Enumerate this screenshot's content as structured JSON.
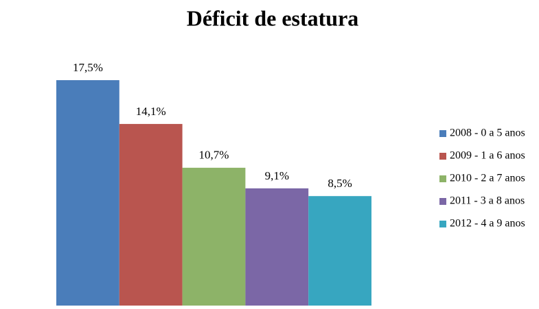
{
  "chart_data": {
    "type": "bar",
    "title": "Déficit de estatura",
    "categories": [
      null
    ],
    "series": [
      {
        "name": "2008 - 0 a 5 anos",
        "color": "#4a7dba",
        "values": [
          17.5
        ],
        "value_labels": [
          "17,5%"
        ]
      },
      {
        "name": "2009 - 1 a 6 anos",
        "color": "#b9554f",
        "values": [
          14.1
        ],
        "value_labels": [
          "14,1%"
        ]
      },
      {
        "name": "2010 - 2 a 7 anos",
        "color": "#8db368",
        "values": [
          10.7
        ],
        "value_labels": [
          "10,7%"
        ]
      },
      {
        "name": "2011 - 3 a 8 anos",
        "color": "#7b67a6",
        "values": [
          9.1
        ],
        "value_labels": [
          "9,1%"
        ]
      },
      {
        "name": "2012 - 4 a 9 anos",
        "color": "#37a6c0",
        "values": [
          8.5
        ],
        "value_labels": [
          "8,5%"
        ]
      }
    ],
    "ylim": [
      0,
      20
    ],
    "legend": "right"
  }
}
